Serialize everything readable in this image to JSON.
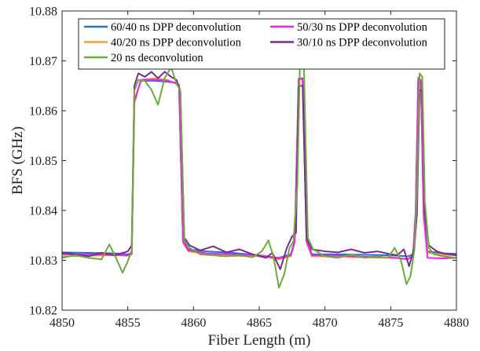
{
  "chart_data": {
    "type": "line",
    "title": "",
    "xlabel": "Fiber Length (m)",
    "ylabel": "BFS (GHz)",
    "xlim": [
      4850,
      4880
    ],
    "ylim": [
      10.82,
      10.88
    ],
    "xticks": [
      4850,
      4855,
      4860,
      4865,
      4870,
      4875,
      4880
    ],
    "yticks": [
      10.82,
      10.83,
      10.84,
      10.85,
      10.86,
      10.87,
      10.88
    ],
    "xtick_labels": [
      "4850",
      "4855",
      "4860",
      "4865",
      "4870",
      "4875",
      "4880"
    ],
    "ytick_labels": [
      "10.82",
      "10.83",
      "10.84",
      "10.85",
      "10.86",
      "10.87",
      "10.88"
    ],
    "grid": false,
    "legend_position": "top",
    "series": [
      {
        "name": "60/40 ns DPP deconvolution",
        "color": "#1f77c8",
        "x": [
          4850,
          4852,
          4854,
          4855,
          4855.3,
          4855.5,
          4856,
          4857,
          4858,
          4858.6,
          4858.9,
          4859.2,
          4859.6,
          4861,
          4863,
          4865,
          4866.5,
          4867.4,
          4867.7,
          4868.0,
          4868.3,
          4868.6,
          4869.0,
          4871,
          4873,
          4875,
          4876.3,
          4876.7,
          4876.9,
          4877.1,
          4877.3,
          4877.5,
          4877.8,
          4879,
          4880
        ],
        "y": [
          10.8316,
          10.8315,
          10.8314,
          10.8312,
          10.8315,
          10.862,
          10.866,
          10.866,
          10.8658,
          10.8656,
          10.8652,
          10.834,
          10.8322,
          10.8318,
          10.8315,
          10.831,
          10.8305,
          10.8312,
          10.834,
          10.8665,
          10.8665,
          10.834,
          10.8312,
          10.8312,
          10.8311,
          10.831,
          10.8308,
          10.8312,
          10.84,
          10.8665,
          10.8655,
          10.84,
          10.8318,
          10.8314,
          10.8313
        ]
      },
      {
        "name": "40/20 ns DPP deconvolution",
        "color": "#f0a030",
        "x": [
          4850,
          4852,
          4854,
          4855,
          4855.3,
          4855.5,
          4856,
          4857,
          4858,
          4858.6,
          4858.9,
          4859.2,
          4859.6,
          4861,
          4863,
          4865,
          4866.5,
          4867.4,
          4867.7,
          4868.0,
          4868.3,
          4868.6,
          4869.0,
          4871,
          4873,
          4875,
          4876.3,
          4876.7,
          4876.9,
          4877.1,
          4877.3,
          4877.5,
          4877.8,
          4879,
          4880
        ],
        "y": [
          10.8308,
          10.8309,
          10.831,
          10.8309,
          10.8312,
          10.8615,
          10.8662,
          10.8665,
          10.8662,
          10.8655,
          10.865,
          10.8335,
          10.8318,
          10.8312,
          10.8309,
          10.8308,
          10.8302,
          10.8308,
          10.8335,
          10.8663,
          10.8663,
          10.8335,
          10.8308,
          10.8307,
          10.8306,
          10.8305,
          10.8303,
          10.8308,
          10.839,
          10.8667,
          10.8662,
          10.839,
          10.8315,
          10.8311,
          10.831
        ]
      },
      {
        "name": "50/30 ns DPP deconvolution",
        "color": "#f020f0",
        "x": [
          4850,
          4852,
          4854,
          4855,
          4855.3,
          4855.5,
          4856,
          4857,
          4858,
          4858.6,
          4858.9,
          4859.2,
          4859.6,
          4861,
          4863,
          4865,
          4866.5,
          4867.4,
          4867.7,
          4868.0,
          4868.3,
          4868.6,
          4869.0,
          4871,
          4873,
          4875,
          4876.3,
          4876.7,
          4876.9,
          4877.1,
          4877.3,
          4877.5,
          4877.8,
          4879,
          4880
        ],
        "y": [
          10.8312,
          10.8312,
          10.8311,
          10.831,
          10.8313,
          10.8618,
          10.8662,
          10.8662,
          10.866,
          10.8656,
          10.8648,
          10.8338,
          10.832,
          10.8314,
          10.8312,
          10.831,
          10.8304,
          10.831,
          10.8338,
          10.8664,
          10.8664,
          10.8338,
          10.831,
          10.8309,
          10.8307,
          10.8306,
          10.8302,
          10.831,
          10.8395,
          10.8666,
          10.866,
          10.8395,
          10.8305,
          10.8304,
          10.8305
        ]
      },
      {
        "name": "30/10 ns DPP deconvolution",
        "color": "#7a2a96",
        "x": [
          4850,
          4851,
          4852,
          4853,
          4854,
          4855,
          4855.3,
          4855.5,
          4855.8,
          4856.3,
          4856.8,
          4857.3,
          4857.8,
          4858.3,
          4858.7,
          4859.0,
          4859.3,
          4859.7,
          4860.5,
          4861.5,
          4862.5,
          4863.5,
          4864.5,
          4865.5,
          4866.0,
          4866.6,
          4867.1,
          4867.5,
          4867.8,
          4868.0,
          4868.3,
          4868.6,
          4869.0,
          4870,
          4871,
          4872,
          4873,
          4874,
          4875,
          4875.5,
          4876.0,
          4876.4,
          4876.8,
          4877.0,
          4877.2,
          4877.4,
          4877.6,
          4877.9,
          4878.5,
          4879,
          4880
        ],
        "y": [
          10.8315,
          10.8312,
          10.8308,
          10.8315,
          10.831,
          10.8318,
          10.833,
          10.865,
          10.8675,
          10.8668,
          10.8678,
          10.8665,
          10.8678,
          10.8668,
          10.8662,
          10.864,
          10.8345,
          10.833,
          10.832,
          10.8328,
          10.8316,
          10.8322,
          10.8312,
          10.8305,
          10.8315,
          10.8282,
          10.8325,
          10.8348,
          10.8355,
          10.865,
          10.865,
          10.8345,
          10.8322,
          10.8318,
          10.8316,
          10.8322,
          10.8315,
          10.8318,
          10.8312,
          10.831,
          10.8322,
          10.8288,
          10.8325,
          10.8395,
          10.8642,
          10.864,
          10.8395,
          10.833,
          10.8318,
          10.8314,
          10.831
        ]
      },
      {
        "name": "20 ns deconvolution",
        "color": "#6aac3a",
        "x": [
          4850,
          4851,
          4852,
          4853,
          4853.6,
          4854.1,
          4854.6,
          4855.0,
          4855.3,
          4855.5,
          4855.8,
          4856.3,
          4856.8,
          4857.3,
          4857.8,
          4858.3,
          4858.7,
          4859.0,
          4859.3,
          4859.7,
          4860.5,
          4861.5,
          4862.5,
          4863.5,
          4864.5,
          4865.2,
          4865.7,
          4866.1,
          4866.5,
          4866.9,
          4867.3,
          4867.6,
          4867.9,
          4868.1,
          4868.4,
          4868.7,
          4869.1,
          4870,
          4871,
          4872,
          4873,
          4874,
          4874.8,
          4875.3,
          4875.8,
          4876.2,
          4876.5,
          4876.8,
          4877.0,
          4877.2,
          4877.4,
          4877.6,
          4877.9,
          4878.3,
          4879,
          4880
        ],
        "y": [
          10.8305,
          10.831,
          10.8305,
          10.8302,
          10.8332,
          10.8305,
          10.8275,
          10.8298,
          10.832,
          10.864,
          10.8662,
          10.866,
          10.8642,
          10.8612,
          10.8665,
          10.8687,
          10.8655,
          10.864,
          10.834,
          10.8325,
          10.8312,
          10.831,
          10.8308,
          10.831,
          10.8306,
          10.8318,
          10.834,
          10.8305,
          10.8245,
          10.8272,
          10.8325,
          10.8338,
          10.845,
          10.87,
          10.8688,
          10.8345,
          10.8322,
          10.8308,
          10.8305,
          10.8312,
          10.8305,
          10.8308,
          10.8305,
          10.8325,
          10.8298,
          10.8252,
          10.8268,
          10.832,
          10.844,
          10.8675,
          10.8668,
          10.8418,
          10.8325,
          10.8312,
          10.8308,
          10.8305
        ]
      }
    ]
  }
}
